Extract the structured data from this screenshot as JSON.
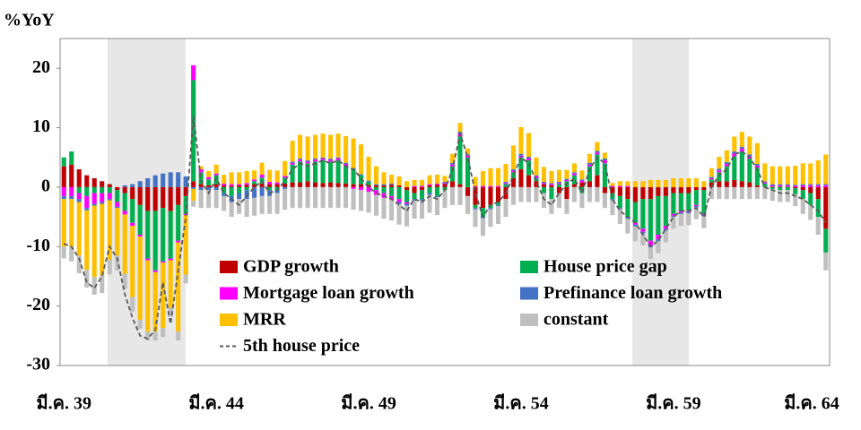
{
  "chart_data": {
    "type": "bar",
    "stacked": true,
    "y_label": "%YoY",
    "categories": [
      "มี.ค. 39",
      null,
      null,
      null,
      null,
      null,
      null,
      null,
      null,
      null,
      null,
      null,
      null,
      null,
      null,
      null,
      null,
      null,
      null,
      null,
      "มี.ค. 44",
      null,
      null,
      null,
      null,
      null,
      null,
      null,
      null,
      null,
      null,
      null,
      null,
      null,
      null,
      null,
      null,
      null,
      null,
      null,
      "มี.ค. 49",
      null,
      null,
      null,
      null,
      null,
      null,
      null,
      null,
      null,
      null,
      null,
      null,
      null,
      null,
      null,
      null,
      null,
      null,
      null,
      "มี.ค. 54",
      null,
      null,
      null,
      null,
      null,
      null,
      null,
      null,
      null,
      null,
      null,
      null,
      null,
      null,
      null,
      null,
      null,
      null,
      null,
      "มี.ค. 59",
      null,
      null,
      null,
      null,
      null,
      null,
      null,
      null,
      null,
      null,
      null,
      null,
      null,
      null,
      null,
      null,
      null,
      null,
      null,
      "มี.ค. 64"
    ],
    "series": [
      {
        "name": "GDP growth",
        "color": "#c00000",
        "values": [
          3.5,
          3.8,
          3,
          2,
          1.5,
          1,
          0.5,
          -0.5,
          -1,
          -2,
          -3,
          -4,
          -4,
          -3.5,
          -4,
          -3,
          -1.5,
          1,
          0.5,
          0.3,
          0.5,
          0.3,
          0.2,
          0.3,
          0.4,
          0.5,
          0.6,
          0.5,
          0.5,
          0.6,
          0.8,
          0.8,
          1,
          0.8,
          0.7,
          0.8,
          0.7,
          0.6,
          0.5,
          0.5,
          0.4,
          0.3,
          0.3,
          0.4,
          0.3,
          -0.5,
          -1,
          -0.5,
          0.3,
          0.4,
          0.5,
          1,
          0.5,
          -1.5,
          -3,
          -3.5,
          -3,
          -2.5,
          -2,
          1.5,
          3,
          2,
          1,
          0.5,
          0.3,
          -1,
          -2,
          0.5,
          0.8,
          1,
          2,
          -1,
          -1,
          -1.5,
          -2,
          -2.5,
          -2,
          -2,
          -1.5,
          -1.5,
          -1,
          -1,
          -1,
          -0.5,
          -0.5,
          0.8,
          1,
          1,
          1.2,
          1,
          0.8,
          0.3,
          0.1,
          0.1,
          0.1,
          0.1,
          -0.2,
          -0.5,
          -1,
          -2,
          -7
        ]
      },
      {
        "name": "House price gap",
        "color": "#00b050",
        "values": [
          1.5,
          2.2,
          -1,
          -1.5,
          -1,
          -1,
          -1,
          -2,
          -3,
          -4,
          -5,
          -8,
          -10,
          -9,
          -8,
          -6,
          -3,
          17,
          2,
          1,
          1.5,
          -1,
          -1.5,
          -1,
          -0.5,
          0.5,
          1,
          -0.5,
          -0.5,
          1,
          3,
          3.5,
          3,
          3.5,
          3.8,
          3.5,
          3.8,
          3,
          2.5,
          1.5,
          0.5,
          -0.5,
          -1,
          -1.5,
          -2,
          -2,
          -1,
          -1.5,
          -1,
          -1.5,
          -0.5,
          2.5,
          8,
          5,
          -0.5,
          -1.5,
          -0.5,
          -0.5,
          0.5,
          1,
          2,
          2.5,
          0.5,
          -1,
          -2,
          0.5,
          1,
          1.5,
          -1,
          2.5,
          3.5,
          4,
          -1,
          -2,
          -3,
          -3.5,
          -5,
          -7,
          -6.5,
          -5,
          -3.5,
          -3,
          -3,
          -2.5,
          -4,
          0.5,
          1.5,
          2.5,
          4,
          5,
          4,
          3,
          0.5,
          -0.3,
          -0.5,
          -0.5,
          -1,
          -1.5,
          -2,
          -3,
          -4
        ]
      },
      {
        "name": "Mortgage loan growth",
        "color": "#ff00ff",
        "values": [
          -1.5,
          -1.5,
          -1,
          -2,
          -1.8,
          -1.5,
          -1,
          -0.8,
          -0.6,
          -0.5,
          -0.3,
          -0.3,
          -0.3,
          -0.2,
          -0.3,
          -0.3,
          -0.2,
          2.5,
          0.5,
          0.4,
          0.3,
          0.3,
          0.3,
          0.2,
          0.3,
          0.3,
          0.5,
          0.4,
          0.3,
          0.3,
          0.3,
          0.3,
          0.3,
          0.3,
          0.3,
          0.3,
          0.3,
          0.3,
          -0.3,
          -0.5,
          -0.8,
          -0.8,
          -0.8,
          -0.6,
          -0.5,
          -0.3,
          0.2,
          0.2,
          0.2,
          0.2,
          0.2,
          0.3,
          0.5,
          0.3,
          0.2,
          0.2,
          0.2,
          0.2,
          0.2,
          0.3,
          0.3,
          0.3,
          0.3,
          0.2,
          0.2,
          0.2,
          0.2,
          0.3,
          0.3,
          0.3,
          0.3,
          0.5,
          0.2,
          0.2,
          0.2,
          -0.3,
          -0.5,
          -0.8,
          -0.8,
          -0.5,
          -0.3,
          -0.3,
          -0.2,
          -0.2,
          -0.2,
          0.2,
          0.3,
          0.4,
          0.5,
          0.5,
          0.4,
          0.3,
          0.2,
          0.2,
          0.2,
          0.2,
          0.2,
          0.3,
          0.3,
          0.3,
          0.3
        ]
      },
      {
        "name": "Prefinance loan growth",
        "color": "#4472c4",
        "values": [
          -0.5,
          -0.5,
          -0.5,
          -0.4,
          -0.3,
          -0.3,
          -0.2,
          -0.2,
          0.3,
          0.5,
          1,
          1.5,
          2,
          2.3,
          2.5,
          2.5,
          1.8,
          -0.3,
          -0.5,
          -0.5,
          -0.5,
          -0.5,
          -1,
          -1,
          -1.5,
          -1.8,
          -1.5,
          -1,
          -0.5,
          -0.3,
          0.2,
          0.2,
          0.2,
          0.2,
          0.2,
          0.2,
          0.2,
          0.2,
          0.2,
          0.2,
          0.2,
          0.2,
          0.2,
          0.2,
          -0.3,
          -0.3,
          -0.3,
          -0.3,
          -0.3,
          -0.2,
          0.2,
          0.3,
          0.3,
          0.2,
          -0.2,
          -0.2,
          -0.2,
          -0.2,
          0.2,
          0.2,
          0.3,
          0.3,
          0.2,
          0.2,
          0.2,
          0.2,
          0.2,
          0.2,
          0.2,
          0.3,
          0.3,
          0.3,
          -0.2,
          -0.2,
          -0.3,
          -0.3,
          -0.3,
          -0.3,
          -0.3,
          -0.3,
          -0.2,
          -0.2,
          -0.2,
          -0.2,
          -0.2,
          0.2,
          0.3,
          0.3,
          0.3,
          0.3,
          0.3,
          0.3,
          0.2,
          0.2,
          0.2,
          0.2,
          0.2,
          0.2,
          0.2,
          0.2,
          0.2
        ]
      },
      {
        "name": "MRR",
        "color": "#ffc000",
        "values": [
          -8,
          -8,
          -9,
          -10,
          -12,
          -12,
          -10,
          -8,
          -10,
          -12,
          -14,
          -12,
          -10,
          -11,
          -8,
          -15,
          -10,
          -2,
          0.5,
          1,
          1.5,
          1.5,
          2,
          2,
          2,
          1.5,
          2,
          2,
          2,
          2.5,
          3.5,
          4,
          4,
          4,
          4,
          4,
          4,
          4.5,
          5,
          5,
          4,
          3,
          2,
          1.5,
          1.5,
          1,
          1,
          1,
          1.5,
          1.5,
          1,
          1.5,
          1.5,
          1,
          1.5,
          2.5,
          3,
          3,
          3,
          4,
          4.5,
          4,
          3,
          2.5,
          2,
          2,
          1.5,
          1.5,
          1.5,
          1.5,
          1.5,
          1,
          0.5,
          0.8,
          0.8,
          1,
          1,
          1.2,
          1.2,
          1.2,
          1.5,
          1.5,
          1.5,
          1.5,
          1,
          1.5,
          2,
          2,
          2.5,
          2.5,
          3,
          3.5,
          3,
          3,
          3,
          3,
          3.2,
          3.5,
          3.5,
          4,
          5
        ]
      },
      {
        "name": "constant",
        "color": "#bfbfbf",
        "values": [
          -2,
          -2.5,
          -3,
          -3,
          -3,
          -3,
          -2.5,
          -2.5,
          -2.5,
          -2.5,
          -1.5,
          -1.5,
          -1.5,
          -1.5,
          -1.5,
          -1.5,
          -1.5,
          -1,
          -3,
          -3,
          -3,
          -2.5,
          -2.5,
          -2.5,
          -3,
          -3,
          -3,
          -3,
          -3.5,
          -3.5,
          -3.5,
          -3.5,
          -3.5,
          -3.5,
          -3.5,
          -3.5,
          -3.5,
          -3.5,
          -3.5,
          -3.5,
          -3.5,
          -3.5,
          -3.5,
          -3.5,
          -3.5,
          -3.5,
          -3,
          -3,
          -3,
          -3,
          -3,
          -3,
          -3,
          -3,
          -3,
          -3,
          -3,
          -3,
          -3,
          -3,
          -2.5,
          -2.5,
          -2.5,
          -2.5,
          -2.5,
          -2.5,
          -2.5,
          -2.5,
          -2.5,
          -2.5,
          -2.5,
          -2.5,
          -2.5,
          -2.5,
          -2.5,
          -2.5,
          -2,
          -2,
          -2,
          -2,
          -2,
          -2,
          -2,
          -2,
          -2,
          -2,
          -2,
          -2,
          -2,
          -2,
          -2,
          -2,
          -2,
          -2,
          -2,
          -2,
          -2,
          -2.5,
          -2.5,
          -3,
          -3
        ]
      },
      {
        "name": "5th house price",
        "type": "line",
        "dashed": true,
        "color": "#595959",
        "values": [
          -9.5,
          -10,
          -12,
          -16,
          -17,
          -15,
          -10,
          -12,
          -18,
          -22,
          -25,
          -25.5,
          -24,
          -16,
          -23,
          -14,
          -5,
          12,
          1,
          -1,
          1.5,
          -1,
          -2,
          -3,
          -1.5,
          0,
          1,
          -1,
          -0.5,
          1,
          3,
          4,
          3.5,
          4,
          4.5,
          4,
          4.5,
          3.5,
          3,
          1.5,
          0,
          -1,
          -1.5,
          -2,
          -3,
          -4,
          -2,
          -2.5,
          -1.5,
          -2,
          -0.5,
          3,
          9,
          5,
          -1,
          -5,
          -3,
          -2.5,
          -1,
          2,
          5,
          4,
          1,
          -2,
          -3,
          -1,
          0.5,
          1.5,
          -1,
          3,
          5,
          4,
          -2,
          -4,
          -5,
          -6,
          -8,
          -10,
          -9,
          -7,
          -5,
          -4,
          -4,
          -3.5,
          -5,
          0,
          2,
          3,
          5.5,
          6,
          5,
          3,
          0,
          -0.5,
          -1,
          -1,
          -1.5,
          -2,
          -3,
          -4,
          -6
        ]
      }
    ],
    "ylim": [
      -30,
      25
    ],
    "yticks": [
      -30,
      -20,
      -10,
      0,
      10,
      20
    ],
    "grid": false,
    "legend": "bottom-center"
  }
}
